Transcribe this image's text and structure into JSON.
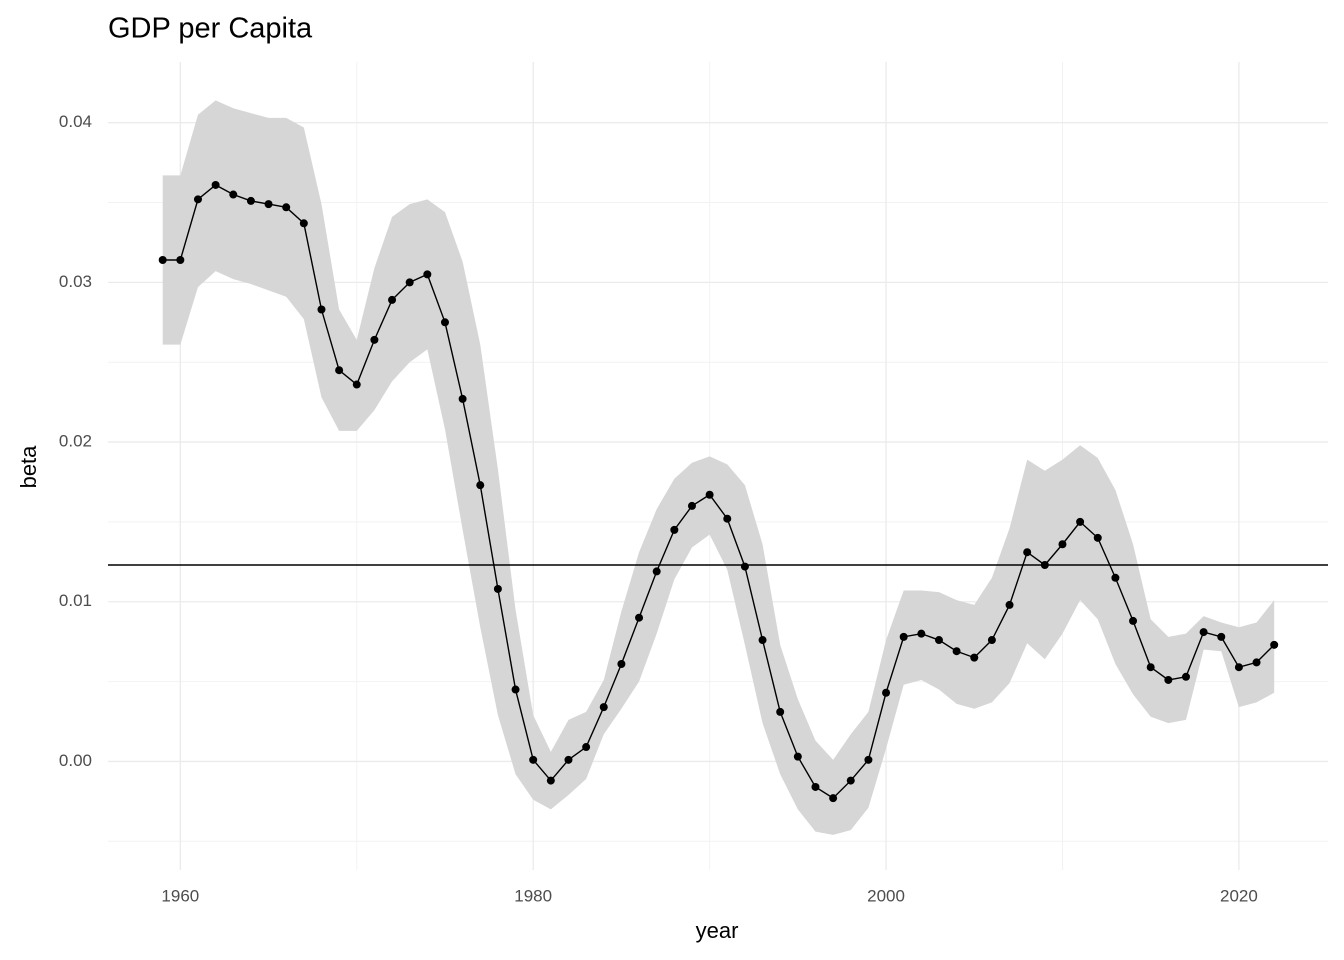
{
  "chart_data": {
    "type": "line",
    "title": "GDP per Capita",
    "x_label": "year",
    "y_label": "beta",
    "x": [
      1959,
      1960,
      1961,
      1962,
      1963,
      1964,
      1965,
      1966,
      1967,
      1968,
      1969,
      1970,
      1971,
      1972,
      1973,
      1974,
      1975,
      1976,
      1977,
      1978,
      1979,
      1980,
      1981,
      1982,
      1983,
      1984,
      1985,
      1986,
      1987,
      1988,
      1989,
      1990,
      1991,
      1992,
      1993,
      1994,
      1995,
      1996,
      1997,
      1998,
      1999,
      2000,
      2001,
      2002,
      2003,
      2004,
      2005,
      2006,
      2007,
      2008,
      2009,
      2010,
      2011,
      2012,
      2013,
      2014,
      2015,
      2016,
      2017,
      2018,
      2019,
      2020,
      2021,
      2022
    ],
    "series": [
      {
        "color": "#000000",
        "band_color": "#d6d6d6",
        "values": [
          0.0314,
          0.0314,
          0.0352,
          0.0361,
          0.0355,
          0.0351,
          0.0349,
          0.0347,
          0.0337,
          0.0283,
          0.0245,
          0.0236,
          0.0264,
          0.0289,
          0.03,
          0.0305,
          0.0275,
          0.0227,
          0.0173,
          0.0108,
          0.0045,
          0.0001,
          -0.0012,
          0.0001,
          0.0009,
          0.0034,
          0.0061,
          0.009,
          0.0119,
          0.0145,
          0.016,
          0.0167,
          0.0152,
          0.0122,
          0.0076,
          0.0031,
          0.0003,
          -0.0016,
          -0.0023,
          -0.0012,
          0.0001,
          0.0043,
          0.0078,
          0.008,
          0.0076,
          0.0069,
          0.0065,
          0.0076,
          0.0098,
          0.0131,
          0.0123,
          0.0136,
          0.015,
          0.014,
          0.0115,
          0.0088,
          0.0059,
          0.0051,
          0.0053,
          0.0081,
          0.0078,
          0.0059,
          0.0062,
          0.0073
        ],
        "upper": [
          0.0367,
          0.0367,
          0.0405,
          0.0414,
          0.0409,
          0.0406,
          0.0403,
          0.0403,
          0.0397,
          0.0349,
          0.0283,
          0.0264,
          0.0309,
          0.0341,
          0.0349,
          0.0352,
          0.0344,
          0.0313,
          0.0261,
          0.0183,
          0.0095,
          0.0029,
          0.0006,
          0.0026,
          0.0031,
          0.0051,
          0.0094,
          0.0131,
          0.0158,
          0.0177,
          0.0187,
          0.0191,
          0.0186,
          0.0173,
          0.0136,
          0.0073,
          0.0039,
          0.0013,
          0.0001,
          0.0017,
          0.0031,
          0.0076,
          0.0107,
          0.0107,
          0.0106,
          0.0101,
          0.0098,
          0.0115,
          0.0146,
          0.0189,
          0.0182,
          0.0189,
          0.0198,
          0.019,
          0.017,
          0.0136,
          0.0089,
          0.0078,
          0.008,
          0.0091,
          0.0087,
          0.0084,
          0.0087,
          0.0101
        ],
        "lower": [
          0.0261,
          0.0261,
          0.0297,
          0.0307,
          0.0302,
          0.0299,
          0.0295,
          0.0291,
          0.0277,
          0.0228,
          0.0207,
          0.0207,
          0.022,
          0.0238,
          0.025,
          0.0258,
          0.0208,
          0.0145,
          0.0084,
          0.0029,
          -0.0008,
          -0.0024,
          -0.003,
          -0.0021,
          -0.0011,
          0.0017,
          0.0033,
          0.005,
          0.008,
          0.0114,
          0.0134,
          0.0142,
          0.012,
          0.0073,
          0.0024,
          -0.0008,
          -0.003,
          -0.0044,
          -0.0046,
          -0.0043,
          -0.0029,
          0.0008,
          0.0048,
          0.0051,
          0.0045,
          0.0036,
          0.0033,
          0.0037,
          0.0049,
          0.0074,
          0.0064,
          0.008,
          0.0101,
          0.0089,
          0.0061,
          0.0042,
          0.0028,
          0.0024,
          0.0026,
          0.007,
          0.0069,
          0.0034,
          0.0037,
          0.0043
        ]
      }
    ],
    "hline": 0.0123,
    "hline_color": "#000000",
    "xlim": [
      1955.9,
      2025.05
    ],
    "ylim": [
      -0.0068,
      0.0438
    ],
    "xticks": [
      1960,
      1980,
      2000,
      2020
    ],
    "yticks": [
      {
        "value": 0,
        "label": "0.00"
      },
      {
        "value": 0.01,
        "label": "0.01"
      },
      {
        "value": 0.02,
        "label": "0.02"
      },
      {
        "value": 0.03,
        "label": "0.03"
      },
      {
        "value": 0.04,
        "label": "0.04"
      }
    ],
    "x_minor_ticks": [
      1970,
      1990,
      2010
    ],
    "y_minor_ticks": [
      -0.005,
      0.005,
      0.015,
      0.025,
      0.035
    ],
    "grid": true
  }
}
